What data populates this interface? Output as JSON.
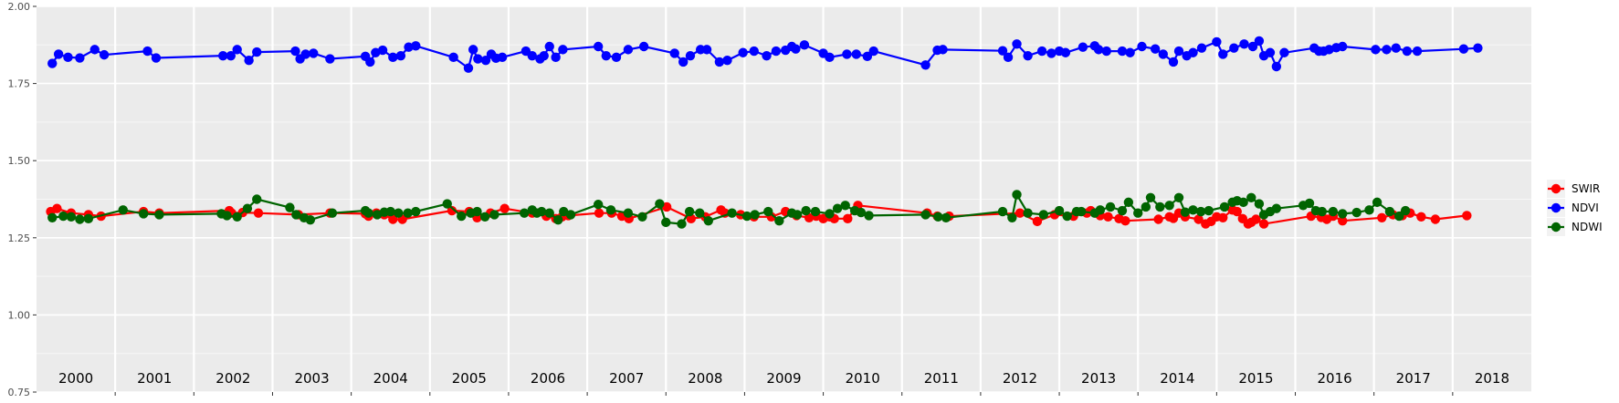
{
  "chart_data": {
    "type": "line",
    "title": "",
    "xlabel": "",
    "ylabel": "",
    "ylim": [
      0.75,
      2.0
    ],
    "yticks": [
      "0.75",
      "1.00",
      "1.25",
      "1.50",
      "1.75",
      "2.00"
    ],
    "grid": true,
    "legend_position": "right",
    "year_labels": [
      "2000",
      "2001",
      "2002",
      "2003",
      "2004",
      "2005",
      "2006",
      "2007",
      "2008",
      "2009",
      "2010",
      "2011",
      "2012",
      "2013",
      "2014",
      "2015",
      "2016",
      "2017",
      "2018"
    ],
    "x_range": [
      2000.0,
      2019.0
    ],
    "series": [
      {
        "name": "SWIR",
        "color": "#ff0000",
        "x": [
          2000.18,
          2000.26,
          2000.44,
          2000.66,
          2000.82,
          2001.36,
          2001.56,
          2002.45,
          2002.48,
          2002.62,
          2002.82,
          2003.33,
          2003.73,
          2004.18,
          2004.22,
          2004.32,
          2004.42,
          2004.53,
          2004.65,
          2005.28,
          2005.5,
          2005.6,
          2005.77,
          2005.95,
          2006.3,
          2006.48,
          2006.6,
          2006.68,
          2006.76,
          2007.15,
          2007.31,
          2007.44,
          2007.53,
          2008.01,
          2008.32,
          2008.5,
          2008.7,
          2008.75,
          2008.95,
          2009.12,
          2009.34,
          2009.52,
          2009.66,
          2009.82,
          2009.91,
          2010.0,
          2010.08,
          2010.14,
          2010.31,
          2010.44,
          2011.32,
          2011.45,
          2011.6,
          2012.5,
          2012.72,
          2012.94,
          2013.18,
          2013.35,
          2013.4,
          2013.47,
          2013.52,
          2013.62,
          2013.76,
          2013.84,
          2014.26,
          2014.4,
          2014.45,
          2014.52,
          2014.6,
          2014.77,
          2014.86,
          2014.93,
          2015.0,
          2015.08,
          2015.2,
          2015.26,
          2015.33,
          2015.4,
          2015.44,
          2015.5,
          2015.6,
          2016.2,
          2016.33,
          2016.4,
          2016.48,
          2016.6,
          2017.1,
          2017.24,
          2017.36,
          2017.46,
          2017.6,
          2017.78,
          2018.18
        ],
        "values": [
          1.335,
          1.345,
          1.33,
          1.325,
          1.32,
          1.335,
          1.33,
          1.338,
          1.33,
          1.332,
          1.33,
          1.325,
          1.33,
          1.328,
          1.32,
          1.33,
          1.325,
          1.31,
          1.31,
          1.338,
          1.335,
          1.315,
          1.33,
          1.345,
          1.33,
          1.32,
          1.312,
          1.318,
          1.322,
          1.33,
          1.33,
          1.32,
          1.312,
          1.35,
          1.312,
          1.318,
          1.34,
          1.33,
          1.325,
          1.318,
          1.318,
          1.335,
          1.322,
          1.315,
          1.32,
          1.312,
          1.318,
          1.312,
          1.312,
          1.355,
          1.33,
          1.32,
          1.32,
          1.33,
          1.303,
          1.325,
          1.32,
          1.33,
          1.338,
          1.33,
          1.322,
          1.318,
          1.312,
          1.305,
          1.31,
          1.318,
          1.313,
          1.33,
          1.318,
          1.31,
          1.295,
          1.303,
          1.318,
          1.315,
          1.34,
          1.335,
          1.312,
          1.295,
          1.3,
          1.31,
          1.295,
          1.32,
          1.316,
          1.31,
          1.32,
          1.305,
          1.315,
          1.325,
          1.322,
          1.33,
          1.318,
          1.31,
          1.322
        ]
      },
      {
        "name": "NDVI",
        "color": "#0000ff",
        "x": [
          2000.2,
          2000.28,
          2000.4,
          2000.55,
          2000.74,
          2000.86,
          2001.41,
          2001.52,
          2002.37,
          2002.47,
          2002.55,
          2002.7,
          2002.8,
          2003.29,
          2003.35,
          2003.42,
          2003.52,
          2003.73,
          2004.18,
          2004.24,
          2004.31,
          2004.4,
          2004.53,
          2004.63,
          2004.73,
          2004.82,
          2005.3,
          2005.49,
          2005.55,
          2005.61,
          2005.71,
          2005.78,
          2005.84,
          2005.92,
          2006.22,
          2006.3,
          2006.4,
          2006.45,
          2006.52,
          2006.6,
          2006.69,
          2007.14,
          2007.24,
          2007.37,
          2007.52,
          2007.72,
          2008.11,
          2008.22,
          2008.31,
          2008.44,
          2008.52,
          2008.68,
          2008.78,
          2008.98,
          2009.12,
          2009.28,
          2009.4,
          2009.52,
          2009.6,
          2009.65,
          2009.76,
          2010.0,
          2010.08,
          2010.3,
          2010.42,
          2010.56,
          2010.64,
          2011.3,
          2011.45,
          2011.52,
          2012.28,
          2012.35,
          2012.46,
          2012.6,
          2012.78,
          2012.9,
          2013.0,
          2013.08,
          2013.3,
          2013.45,
          2013.5,
          2013.6,
          2013.8,
          2013.9,
          2014.05,
          2014.22,
          2014.32,
          2014.45,
          2014.52,
          2014.62,
          2014.7,
          2014.81,
          2015.0,
          2015.08,
          2015.22,
          2015.35,
          2015.46,
          2015.54,
          2015.6,
          2015.68,
          2015.76,
          2015.86,
          2016.24,
          2016.3,
          2016.36,
          2016.43,
          2016.52,
          2016.6,
          2017.02,
          2017.16,
          2017.28,
          2017.42,
          2017.55,
          2018.14,
          2018.32
        ],
        "values": [
          1.815,
          1.845,
          1.835,
          1.833,
          1.86,
          1.843,
          1.855,
          1.833,
          1.84,
          1.84,
          1.86,
          1.825,
          1.852,
          1.855,
          1.83,
          1.845,
          1.848,
          1.83,
          1.838,
          1.82,
          1.85,
          1.858,
          1.835,
          1.84,
          1.868,
          1.872,
          1.835,
          1.8,
          1.86,
          1.83,
          1.825,
          1.845,
          1.832,
          1.835,
          1.855,
          1.84,
          1.83,
          1.84,
          1.87,
          1.835,
          1.86,
          1.87,
          1.84,
          1.835,
          1.86,
          1.87,
          1.848,
          1.82,
          1.84,
          1.86,
          1.86,
          1.82,
          1.825,
          1.85,
          1.855,
          1.84,
          1.855,
          1.858,
          1.87,
          1.862,
          1.875,
          1.848,
          1.835,
          1.845,
          1.845,
          1.838,
          1.855,
          1.81,
          1.858,
          1.86,
          1.856,
          1.835,
          1.878,
          1.84,
          1.855,
          1.848,
          1.855,
          1.85,
          1.868,
          1.872,
          1.86,
          1.855,
          1.855,
          1.85,
          1.87,
          1.862,
          1.845,
          1.82,
          1.855,
          1.84,
          1.85,
          1.865,
          1.885,
          1.845,
          1.865,
          1.878,
          1.87,
          1.888,
          1.84,
          1.85,
          1.805,
          1.85,
          1.865,
          1.855,
          1.855,
          1.86,
          1.866,
          1.87,
          1.86,
          1.86,
          1.865,
          1.855,
          1.855,
          1.862,
          1.865
        ]
      },
      {
        "name": "NDWI",
        "color": "#006400",
        "x": [
          2000.2,
          2000.34,
          2000.44,
          2000.55,
          2000.66,
          2001.1,
          2001.36,
          2001.56,
          2002.35,
          2002.42,
          2002.55,
          2002.68,
          2002.8,
          2003.22,
          2003.3,
          2003.4,
          2003.48,
          2003.76,
          2004.18,
          2004.22,
          2004.33,
          2004.42,
          2004.5,
          2004.6,
          2004.72,
          2004.82,
          2005.22,
          2005.4,
          2005.52,
          2005.6,
          2005.7,
          2005.82,
          2006.2,
          2006.3,
          2006.36,
          2006.42,
          2006.52,
          2006.63,
          2006.7,
          2006.79,
          2007.14,
          2007.3,
          2007.52,
          2007.7,
          2007.92,
          2008.0,
          2008.2,
          2008.3,
          2008.43,
          2008.54,
          2008.84,
          2009.03,
          2009.13,
          2009.3,
          2009.44,
          2009.6,
          2009.67,
          2009.78,
          2009.9,
          2010.08,
          2010.18,
          2010.28,
          2010.4,
          2010.48,
          2010.58,
          2011.3,
          2011.46,
          2011.56,
          2012.28,
          2012.4,
          2012.46,
          2012.6,
          2012.8,
          2013.0,
          2013.1,
          2013.22,
          2013.28,
          2013.45,
          2013.52,
          2013.65,
          2013.8,
          2013.88,
          2014.0,
          2014.1,
          2014.16,
          2014.28,
          2014.4,
          2014.52,
          2014.6,
          2014.7,
          2014.8,
          2014.9,
          2015.1,
          2015.2,
          2015.26,
          2015.34,
          2015.44,
          2015.54,
          2015.6,
          2015.68,
          2015.76,
          2016.1,
          2016.18,
          2016.26,
          2016.34,
          2016.48,
          2016.6,
          2016.78,
          2016.94,
          2017.04,
          2017.2,
          2017.32,
          2017.4
        ],
        "values": [
          1.315,
          1.32,
          1.318,
          1.31,
          1.312,
          1.34,
          1.328,
          1.325,
          1.328,
          1.322,
          1.318,
          1.345,
          1.375,
          1.348,
          1.325,
          1.315,
          1.308,
          1.33,
          1.338,
          1.33,
          1.325,
          1.333,
          1.335,
          1.33,
          1.33,
          1.335,
          1.36,
          1.32,
          1.33,
          1.335,
          1.318,
          1.325,
          1.33,
          1.34,
          1.33,
          1.335,
          1.33,
          1.308,
          1.335,
          1.325,
          1.358,
          1.34,
          1.33,
          1.318,
          1.36,
          1.3,
          1.295,
          1.335,
          1.33,
          1.305,
          1.33,
          1.32,
          1.325,
          1.335,
          1.305,
          1.33,
          1.325,
          1.338,
          1.335,
          1.328,
          1.345,
          1.355,
          1.338,
          1.332,
          1.322,
          1.325,
          1.318,
          1.315,
          1.335,
          1.315,
          1.39,
          1.33,
          1.325,
          1.338,
          1.32,
          1.335,
          1.335,
          1.33,
          1.34,
          1.35,
          1.338,
          1.365,
          1.33,
          1.35,
          1.38,
          1.35,
          1.355,
          1.38,
          1.333,
          1.34,
          1.335,
          1.338,
          1.35,
          1.365,
          1.37,
          1.365,
          1.38,
          1.36,
          1.325,
          1.335,
          1.345,
          1.355,
          1.362,
          1.338,
          1.335,
          1.335,
          1.328,
          1.332,
          1.34,
          1.365,
          1.335,
          1.32,
          1.338
        ]
      }
    ]
  }
}
